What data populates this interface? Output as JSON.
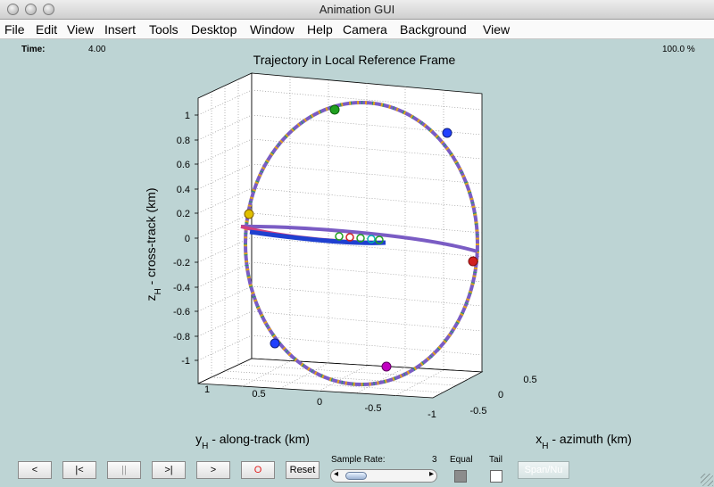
{
  "window": {
    "title": "Animation GUI"
  },
  "menu": [
    "File",
    "Edit",
    "View",
    "Insert",
    "Tools",
    "Desktop",
    "Window",
    "Help",
    "Camera",
    "Background",
    "View"
  ],
  "status": {
    "time_label": "Time:",
    "time_value": "4.00",
    "percent": "100.0 %"
  },
  "chart_data": {
    "type": "scatter",
    "title": "Trajectory in Local Reference Frame",
    "zlabel_main": "z",
    "zlabel_sub": "H",
    "zlabel_rest": " - cross-track (km)",
    "ylabel_main": "y",
    "ylabel_sub": "H",
    "ylabel_rest": " - along-track (km)",
    "xlabel_main": "x",
    "xlabel_sub": "H",
    "xlabel_rest": " - azimuth (km)",
    "z_ticks": [
      "1",
      "0.8",
      "0.6",
      "0.4",
      "0.2",
      "0",
      "-0.2",
      "-0.4",
      "-0.6",
      "-0.8",
      "-1"
    ],
    "y_ticks": [
      "1",
      "0.5",
      "0",
      "-0.5",
      "-1"
    ],
    "x_ticks": [
      "0.5",
      "0",
      "-0.5"
    ],
    "grid": true,
    "series_colors": [
      "#2040ff",
      "#d02020",
      "#20a020",
      "#c000c0",
      "#e0c000",
      "#00b0b0"
    ]
  },
  "controls": {
    "buttons": [
      {
        "name": "step-back-button",
        "label": "<"
      },
      {
        "name": "rewind-button",
        "label": "|<"
      },
      {
        "name": "pause-button",
        "label": "||"
      },
      {
        "name": "forward-end-button",
        "label": ">|"
      },
      {
        "name": "play-button",
        "label": ">"
      },
      {
        "name": "record-button",
        "label": "O"
      },
      {
        "name": "reset-button",
        "label": "Reset"
      }
    ],
    "sample_rate_label": "Sample Rate:",
    "sample_rate_value": "3",
    "equal_label": "Equal",
    "tail_label": "Tail",
    "disabled_label": "Span/Nu"
  }
}
